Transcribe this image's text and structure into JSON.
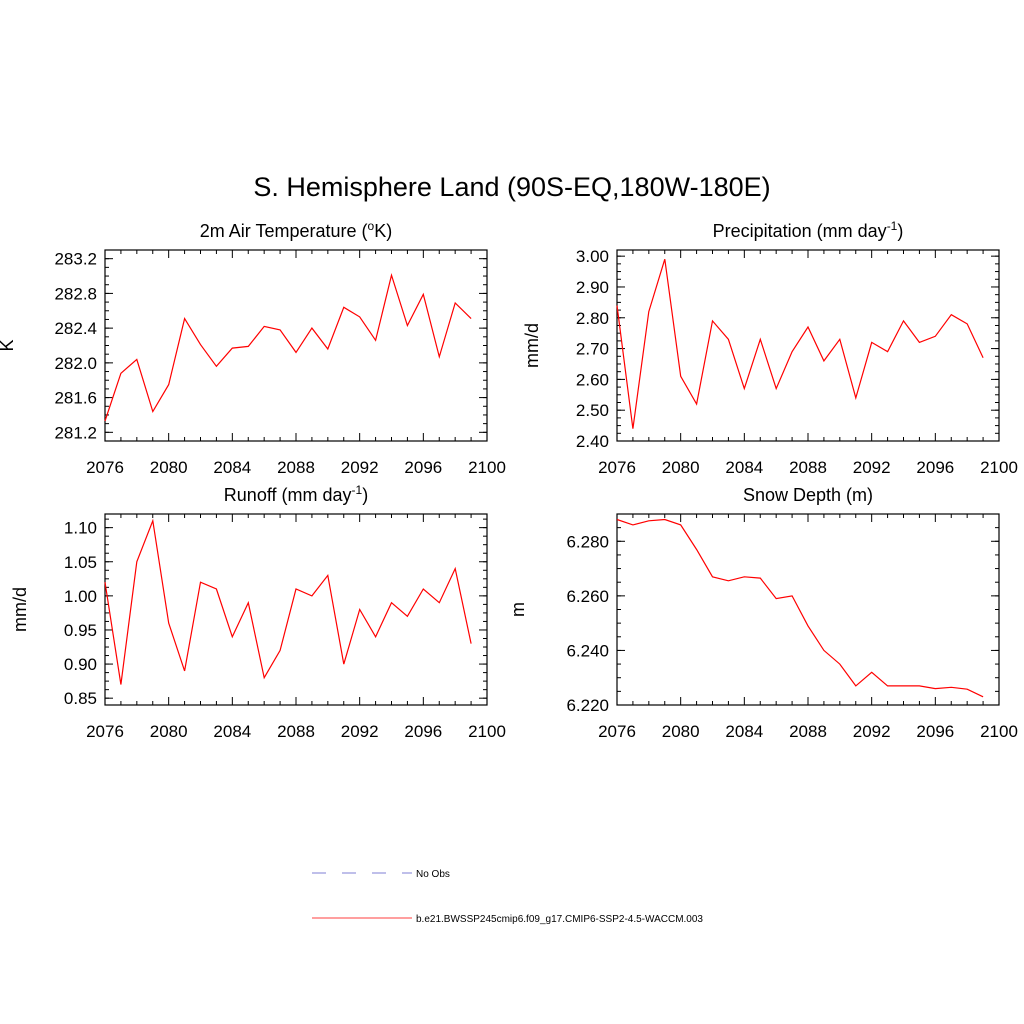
{
  "figure": {
    "title": "S. Hemisphere Land (90S-EQ,180W-180E)"
  },
  "chart_data": [
    {
      "type": "line",
      "title": "2m Air Temperature (",
      "title_sup": "o",
      "title_end": "K)",
      "ylabel": "K",
      "xlim": [
        2076,
        2100
      ],
      "ylim": [
        281.1,
        283.3
      ],
      "xticks": [
        "2076",
        "2080",
        "2084",
        "2088",
        "2092",
        "2096",
        "2100"
      ],
      "yticks": [
        "281.2",
        "281.6",
        "282.0",
        "282.4",
        "282.8",
        "283.2"
      ],
      "x": [
        2076,
        2077,
        2078,
        2079,
        2080,
        2081,
        2082,
        2083,
        2084,
        2085,
        2086,
        2087,
        2088,
        2089,
        2090,
        2091,
        2092,
        2093,
        2094,
        2095,
        2096,
        2097,
        2098,
        2099
      ],
      "series": [
        {
          "color": "#ff0000",
          "values": [
            281.33,
            281.88,
            282.04,
            281.44,
            281.75,
            282.51,
            282.21,
            281.96,
            282.17,
            282.19,
            282.42,
            282.38,
            282.12,
            282.4,
            282.16,
            282.64,
            282.53,
            282.26,
            283.01,
            282.43,
            282.79,
            282.07,
            282.69,
            282.51
          ]
        }
      ]
    },
    {
      "type": "line",
      "title": "Precipitation (mm day",
      "title_sup": "-1",
      "title_end": ")",
      "ylabel": "mm/d",
      "xlim": [
        2076,
        2100
      ],
      "ylim": [
        2.4,
        3.02
      ],
      "xticks": [
        "2076",
        "2080",
        "2084",
        "2088",
        "2092",
        "2096",
        "2100"
      ],
      "yticks": [
        "2.40",
        "2.50",
        "2.60",
        "2.70",
        "2.80",
        "2.90",
        "3.00"
      ],
      "x": [
        2076,
        2077,
        2078,
        2079,
        2080,
        2081,
        2082,
        2083,
        2084,
        2085,
        2086,
        2087,
        2088,
        2089,
        2090,
        2091,
        2092,
        2093,
        2094,
        2095,
        2096,
        2097,
        2098,
        2099
      ],
      "series": [
        {
          "color": "#ff0000",
          "values": [
            2.84,
            2.44,
            2.82,
            2.99,
            2.61,
            2.52,
            2.79,
            2.73,
            2.57,
            2.73,
            2.57,
            2.69,
            2.77,
            2.66,
            2.73,
            2.54,
            2.72,
            2.69,
            2.79,
            2.72,
            2.74,
            2.81,
            2.78,
            2.67
          ]
        }
      ]
    },
    {
      "type": "line",
      "title": "Runoff (mm day",
      "title_sup": "-1",
      "title_end": ")",
      "ylabel": "mm/d",
      "xlim": [
        2076,
        2100
      ],
      "ylim": [
        0.84,
        1.12
      ],
      "xticks": [
        "2076",
        "2080",
        "2084",
        "2088",
        "2092",
        "2096",
        "2100"
      ],
      "yticks": [
        "0.85",
        "0.90",
        "0.95",
        "1.00",
        "1.05",
        "1.10"
      ],
      "x": [
        2076,
        2077,
        2078,
        2079,
        2080,
        2081,
        2082,
        2083,
        2084,
        2085,
        2086,
        2087,
        2088,
        2089,
        2090,
        2091,
        2092,
        2093,
        2094,
        2095,
        2096,
        2097,
        2098,
        2099
      ],
      "series": [
        {
          "color": "#ff0000",
          "values": [
            1.02,
            0.87,
            1.05,
            1.11,
            0.96,
            0.89,
            1.02,
            1.01,
            0.94,
            0.99,
            0.88,
            0.92,
            1.01,
            1.0,
            1.03,
            0.9,
            0.98,
            0.94,
            0.99,
            0.97,
            1.01,
            0.99,
            1.04,
            0.93
          ]
        }
      ]
    },
    {
      "type": "line",
      "title": "Snow Depth (m)",
      "title_sup": "",
      "title_end": "",
      "ylabel": "m",
      "xlim": [
        2076,
        2100
      ],
      "ylim": [
        6.22,
        6.29
      ],
      "xticks": [
        "2076",
        "2080",
        "2084",
        "2088",
        "2092",
        "2096",
        "2100"
      ],
      "yticks": [
        "6.220",
        "6.240",
        "6.260",
        "6.280"
      ],
      "x": [
        2076,
        2077,
        2078,
        2079,
        2080,
        2081,
        2082,
        2083,
        2084,
        2085,
        2086,
        2087,
        2088,
        2089,
        2090,
        2091,
        2092,
        2093,
        2094,
        2095,
        2096,
        2097,
        2098,
        2099
      ],
      "series": [
        {
          "color": "#ff0000",
          "values": [
            6.288,
            6.286,
            6.2875,
            6.288,
            6.286,
            6.277,
            6.267,
            6.2655,
            6.267,
            6.2665,
            6.259,
            6.26,
            6.249,
            6.24,
            6.235,
            6.227,
            6.232,
            6.227,
            6.227,
            6.227,
            6.226,
            6.2265,
            6.2258,
            6.223
          ]
        }
      ]
    }
  ],
  "legend": {
    "items": [
      {
        "label": "No Obs",
        "color": "#9999dd",
        "style": "dashed"
      },
      {
        "label": "b.e21.BWSSP245cmip6.f09_g17.CMIP6-SSP2-4.5-WACCM.003",
        "color": "#ff6666",
        "style": "solid"
      }
    ]
  }
}
